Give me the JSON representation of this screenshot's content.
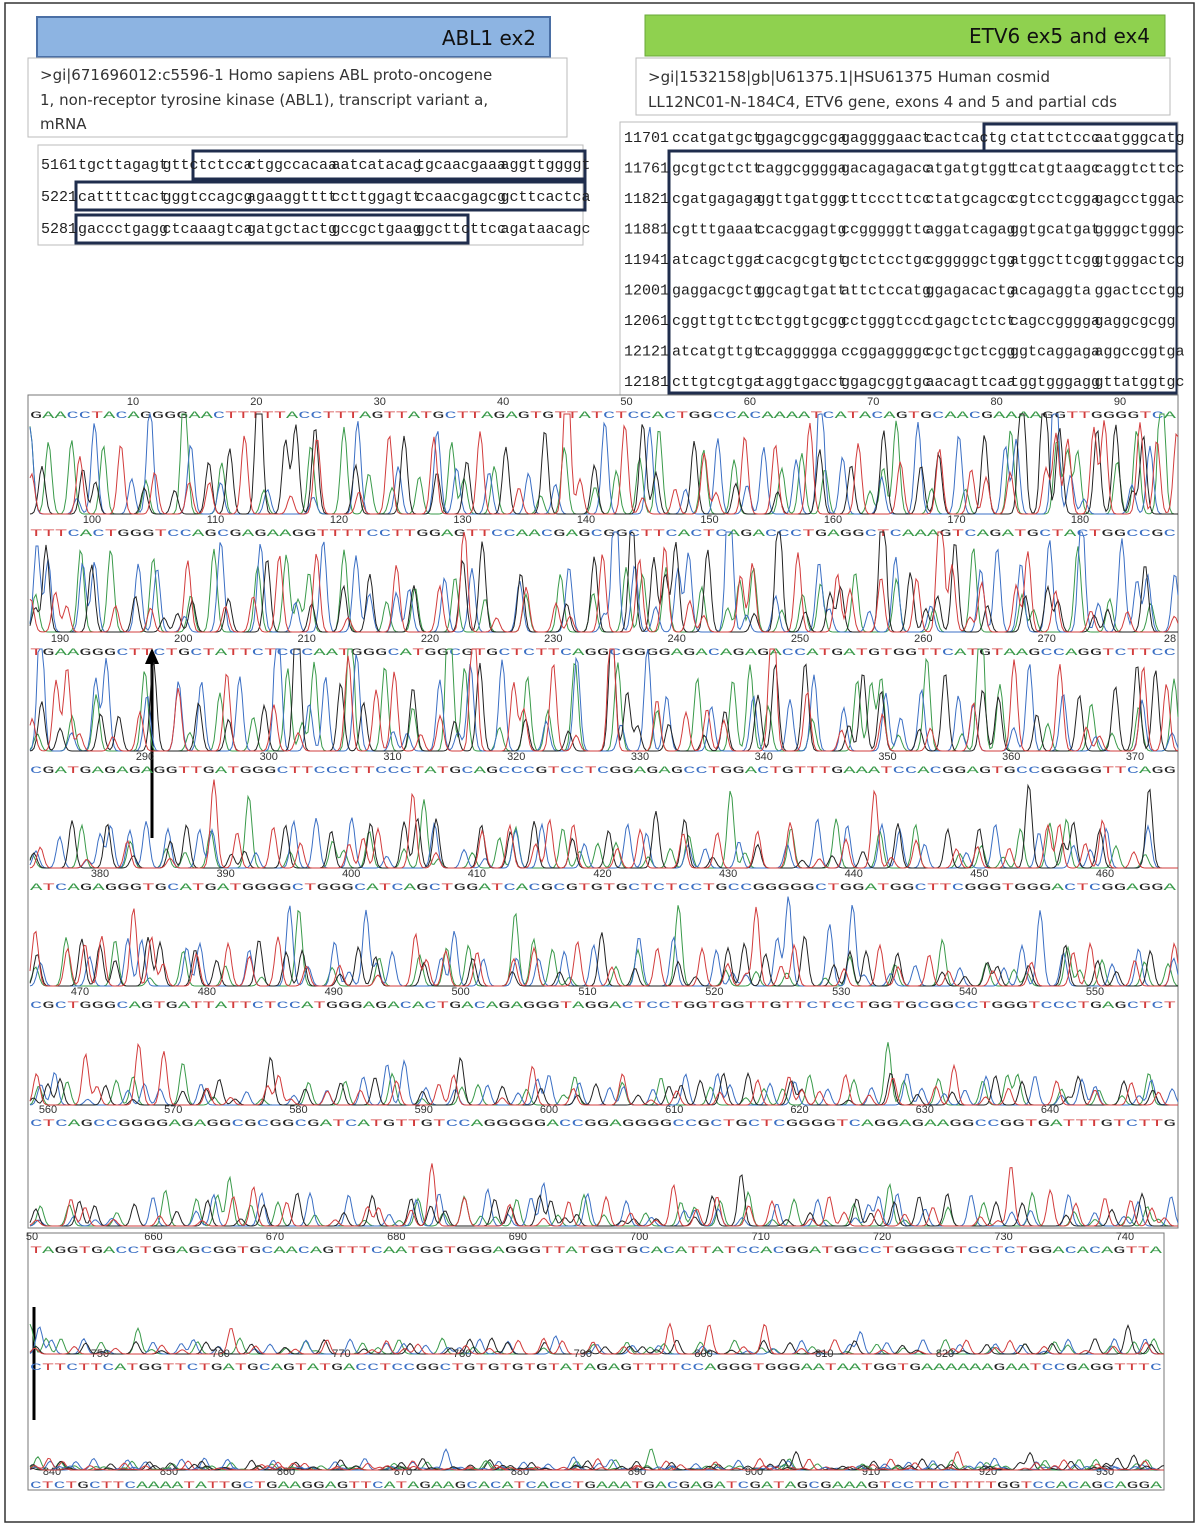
{
  "abl1": {
    "header": "ABL1 ex2",
    "description": [
      ">gi|671696012:c5596-1 Homo sapiens ABL proto-oncogene",
      "1, non-receptor tyrosine kinase (ABL1), transcript variant a,",
      "mRNA"
    ],
    "sequence": [
      {
        "position": "5161",
        "groups": [
          "tgcttagagt",
          "gttctctcca",
          "ctggccacaa",
          "aatcatacag",
          "tgcaacgaaa",
          "aggttggggt"
        ]
      },
      {
        "position": "5221",
        "groups": [
          "cattttcact",
          "gggtccagcg",
          "agaaggtttt",
          "ccttggagtt",
          "ccaacgagcg",
          "gcttcactca"
        ]
      },
      {
        "position": "5281",
        "groups": [
          "gaccctgagg",
          "ctcaaagtca",
          "gatgctactg",
          "gccgctgaag",
          "ggcttcttcc",
          "agataacagc"
        ]
      }
    ]
  },
  "etv6": {
    "header": "ETV6 ex5 and ex4",
    "description": [
      ">gi|1532158|gb|U61375.1|HSU61375 Human cosmid",
      "LL12NC01-N-184C4, ETV6 gene, exons 4 and 5 and partial cds"
    ],
    "sequence": [
      {
        "position": "11701",
        "groups": [
          "ccatgatgct",
          "ggagcggcga",
          "gaggggaact",
          "cactcactg",
          "ctattctccc",
          "aatgggcatg"
        ]
      },
      {
        "position": "11761",
        "groups": [
          "gcgtgctctt",
          "caggcgggga",
          "gacagagacc",
          "atgatgtggt",
          "tcatgtaagc",
          "caggtcttcc"
        ]
      },
      {
        "position": "11821",
        "groups": [
          "cgatgagaga",
          "ggttgatggg",
          "cttcccttcc",
          "ctatgcagcc",
          "cgtcctcgga",
          "gagcctggac"
        ]
      },
      {
        "position": "11881",
        "groups": [
          "cgtttgaaat",
          "ccacggagtg",
          "ccgggggttc",
          "aggatcagag",
          "ggtgcatgat",
          "ggggctgggc"
        ]
      },
      {
        "position": "11941",
        "groups": [
          "atcagctgga",
          "tcacgcgtgt",
          "gctctcctgc",
          "cgggggctgg",
          "atggcttcgg",
          "gtgggactcg"
        ]
      },
      {
        "position": "12001",
        "groups": [
          "gaggacgctg",
          "ggcagtgatt",
          "attctccatg",
          "ggagacactg",
          "acagaggta",
          "ggactcctgg"
        ]
      },
      {
        "position": "12061",
        "groups": [
          "cggttgttct",
          "cctggtgcgg",
          "cctgggtccc",
          "tgagctctct",
          "cagccgggga",
          "gaggcgcgg"
        ]
      },
      {
        "position": "12121",
        "groups": [
          "atcatgttgt",
          "ccaggggga",
          "ccggaggggc",
          "cgctgctcgg",
          "ggtcaggaga",
          "aggccggtga"
        ]
      },
      {
        "position": "12181",
        "groups": [
          "cttgtcgtga",
          "taggtgacct",
          "ggagcggtgc",
          "aacagttcaa",
          "tggtgggagg",
          "gttatggtgc"
        ]
      }
    ]
  },
  "chromatogram": {
    "rows": [
      {
        "positions": [
          10,
          20,
          30,
          40,
          50,
          60,
          70,
          80,
          90
        ],
        "bases": "GAACCTACAGGGGAACTTTTTACCTTTAGTTATGCTTAGAGTGTTATCTCCACTGGCCACAAAATCATACAGTGCAACGAAAAGGTTGGGGTCA"
      },
      {
        "positions": [
          100,
          110,
          120,
          130,
          140,
          150,
          160,
          170,
          180
        ],
        "bases": "TTTCACTGGGTCCAGCGAGAAGGTTTTCCTTGGAGTTCCAACGAGCGGCTTCACTCAGACCCTGAGGCTCAAAGTCAGATGCTACTGGCCGC"
      },
      {
        "positions": [
          190,
          200,
          210,
          220,
          230,
          240,
          250,
          260,
          270,
          28
        ],
        "bases": "TGAAGGGCTTCTGCTATTCTCCCAATGGGCATGGCGTGCTCTTCAGGCGGGGAGACAGAGACCATGATGTGGTTCATGTAAGCCAGGTCTTCC"
      },
      {
        "positions": [
          290,
          300,
          310,
          320,
          330,
          340,
          350,
          360,
          370
        ],
        "bases": "CGATGAGAGAGGTTGATGGGCTTCCCTTCCCTATGCAGCCCGTCCTCGGAGAGCCTGGACTGTTTGAAATCCACGGAGTGCCGGGGGTTCAGG"
      },
      {
        "positions": [
          380,
          390,
          400,
          410,
          420,
          430,
          440,
          450,
          460
        ],
        "bases": "ATCAGAGGGTGCATGATGGGGCTGGGCATCAGCTGGATCACGCGTGTGCTCTCCTGCCGGGGGCTGGATGGCTTCGGGTGGGACTCGGAGGA"
      },
      {
        "positions": [
          470,
          480,
          490,
          500,
          510,
          520,
          530,
          540,
          550
        ],
        "bases": "CGCTGGGCAGTGATTATTCTCCATGGGAGACACTGACAGAGGGTAGGACTCCTGGTGGTTGTTCTCCTGGTGCGGCCTGGGTCCCTGAGCTCT"
      },
      {
        "positions": [
          560,
          570,
          580,
          590,
          600,
          610,
          620,
          630,
          640
        ],
        "bases": "CTCAGCCGGGGAGAGGCGCGGCGATCATGTTGTCCAGGGGGACCGGAGGGGCCGCTGCTCGGGGTCAGGAGAAGGCCGGTGATTTGTCTTG"
      },
      {
        "positions": [
          50,
          660,
          670,
          680,
          690,
          700,
          710,
          720,
          730,
          740
        ],
        "bases": "TAGGTGACCTGGAGCGGTGCAACAGTTTCAATGGTGGGAGGGTTATGGTGCACATTATCCACGGATGGCCTGGGGGTCCTCTGGACACAGTTA"
      },
      {
        "positions": [
          750,
          760,
          770,
          780,
          790,
          800,
          810,
          820
        ],
        "bases": "CTTCTTCATGGTTCTGATGCAGTATGACCTCCGGCTGTGTGTGTATAGAGTTTTCCAGGGTGGGAATAATGGTGAAAAAAGAATCCGAGGTTTC"
      },
      {
        "positions": [
          840,
          850,
          860,
          870,
          880,
          890,
          900,
          910,
          920,
          930
        ],
        "bases": "CTCTGCTTCAAAATATTGCTGAAGGAGTTCATAGAAGCACATCACCTGAAATGACGAGATCGATAGCGAAAGTCCTTCTTTTGGTCCACAGCAGGA"
      }
    ]
  }
}
